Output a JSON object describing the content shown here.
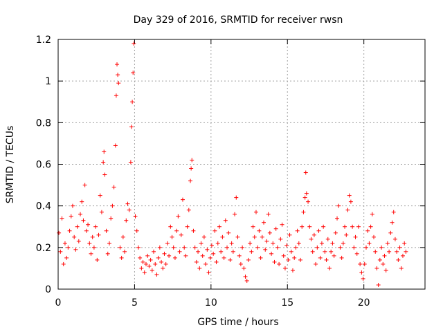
{
  "chart_data": {
    "type": "scatter",
    "title": "Day 329 of 2016, SRMTID for receiver rwsn",
    "xlabel": "GPS time / hours",
    "ylabel": "SRMTID / TECUs",
    "xlim": [
      0,
      24
    ],
    "ylim": [
      0,
      1.2
    ],
    "grid": true,
    "x_ticks": [
      0,
      5,
      10,
      15,
      20
    ],
    "x_tick_labels": [
      "0",
      "5",
      "10",
      "15",
      "20"
    ],
    "y_ticks": [
      0,
      0.2,
      0.4,
      0.6,
      0.8,
      1.0,
      1.2
    ],
    "y_tick_labels": [
      "0",
      "0.2",
      "0.4",
      "0.6",
      "0.8",
      "1",
      "1.2"
    ],
    "marker": "+",
    "color": "#ff0000",
    "series": [
      {
        "name": "SRMTID",
        "points": [
          [
            0.05,
            0.27
          ],
          [
            0.15,
            0.18
          ],
          [
            0.25,
            0.34
          ],
          [
            0.35,
            0.12
          ],
          [
            0.45,
            0.22
          ],
          [
            0.55,
            0.15
          ],
          [
            0.65,
            0.2
          ],
          [
            0.75,
            0.28
          ],
          [
            0.85,
            0.35
          ],
          [
            0.95,
            0.4
          ],
          [
            1.05,
            0.25
          ],
          [
            1.15,
            0.19
          ],
          [
            1.25,
            0.3
          ],
          [
            1.35,
            0.23
          ],
          [
            1.45,
            0.36
          ],
          [
            1.55,
            0.42
          ],
          [
            1.65,
            0.33
          ],
          [
            1.75,
            0.5
          ],
          [
            1.85,
            0.28
          ],
          [
            1.95,
            0.31
          ],
          [
            2.05,
            0.22
          ],
          [
            2.15,
            0.17
          ],
          [
            2.25,
            0.25
          ],
          [
            2.35,
            0.2
          ],
          [
            2.45,
            0.3
          ],
          [
            2.55,
            0.14
          ],
          [
            2.65,
            0.26
          ],
          [
            2.75,
            0.45
          ],
          [
            2.85,
            0.37
          ],
          [
            2.95,
            0.61
          ],
          [
            3.0,
            0.66
          ],
          [
            3.05,
            0.55
          ],
          [
            3.15,
            0.28
          ],
          [
            3.25,
            0.17
          ],
          [
            3.35,
            0.22
          ],
          [
            3.45,
            0.34
          ],
          [
            3.55,
            0.4
          ],
          [
            3.65,
            0.49
          ],
          [
            3.75,
            0.69
          ],
          [
            3.8,
            0.93
          ],
          [
            3.85,
            1.08
          ],
          [
            3.9,
            1.03
          ],
          [
            3.95,
            0.99
          ],
          [
            4.05,
            0.2
          ],
          [
            4.15,
            0.15
          ],
          [
            4.25,
            0.25
          ],
          [
            4.35,
            0.18
          ],
          [
            4.45,
            0.33
          ],
          [
            4.55,
            0.41
          ],
          [
            4.65,
            0.38
          ],
          [
            4.75,
            0.61
          ],
          [
            4.8,
            0.78
          ],
          [
            4.85,
            0.9
          ],
          [
            4.9,
            1.04
          ],
          [
            4.95,
            1.18
          ],
          [
            5.05,
            0.35
          ],
          [
            5.15,
            0.28
          ],
          [
            5.25,
            0.2
          ],
          [
            5.35,
            0.15
          ],
          [
            5.45,
            0.1
          ],
          [
            5.55,
            0.13
          ],
          [
            5.65,
            0.08
          ],
          [
            5.75,
            0.12
          ],
          [
            5.85,
            0.16
          ],
          [
            5.95,
            0.11
          ],
          [
            6.05,
            0.14
          ],
          [
            6.15,
            0.09
          ],
          [
            6.25,
            0.18
          ],
          [
            6.35,
            0.12
          ],
          [
            6.45,
            0.07
          ],
          [
            6.55,
            0.15
          ],
          [
            6.65,
            0.2
          ],
          [
            6.75,
            0.13
          ],
          [
            6.85,
            0.1
          ],
          [
            6.95,
            0.17
          ],
          [
            7.05,
            0.12
          ],
          [
            7.15,
            0.22
          ],
          [
            7.25,
            0.16
          ],
          [
            7.35,
            0.3
          ],
          [
            7.45,
            0.25
          ],
          [
            7.55,
            0.2
          ],
          [
            7.65,
            0.15
          ],
          [
            7.75,
            0.28
          ],
          [
            7.85,
            0.35
          ],
          [
            7.95,
            0.18
          ],
          [
            8.05,
            0.26
          ],
          [
            8.15,
            0.43
          ],
          [
            8.25,
            0.2
          ],
          [
            8.35,
            0.16
          ],
          [
            8.45,
            0.3
          ],
          [
            8.55,
            0.38
          ],
          [
            8.65,
            0.52
          ],
          [
            8.7,
            0.58
          ],
          [
            8.75,
            0.62
          ],
          [
            8.85,
            0.28
          ],
          [
            8.95,
            0.2
          ],
          [
            9.05,
            0.13
          ],
          [
            9.15,
            0.18
          ],
          [
            9.25,
            0.1
          ],
          [
            9.35,
            0.22
          ],
          [
            9.45,
            0.16
          ],
          [
            9.55,
            0.25
          ],
          [
            9.65,
            0.12
          ],
          [
            9.75,
            0.19
          ],
          [
            9.85,
            0.08
          ],
          [
            9.95,
            0.15
          ],
          [
            10.05,
            0.21
          ],
          [
            10.15,
            0.17
          ],
          [
            10.25,
            0.28
          ],
          [
            10.35,
            0.13
          ],
          [
            10.45,
            0.22
          ],
          [
            10.55,
            0.3
          ],
          [
            10.65,
            0.18
          ],
          [
            10.75,
            0.25
          ],
          [
            10.85,
            0.15
          ],
          [
            10.95,
            0.33
          ],
          [
            11.05,
            0.2
          ],
          [
            11.15,
            0.27
          ],
          [
            11.25,
            0.14
          ],
          [
            11.35,
            0.22
          ],
          [
            11.45,
            0.18
          ],
          [
            11.55,
            0.36
          ],
          [
            11.65,
            0.44
          ],
          [
            11.75,
            0.25
          ],
          [
            11.85,
            0.16
          ],
          [
            11.95,
            0.12
          ],
          [
            12.05,
            0.2
          ],
          [
            12.15,
            0.1
          ],
          [
            12.25,
            0.06
          ],
          [
            12.35,
            0.04
          ],
          [
            12.45,
            0.14
          ],
          [
            12.55,
            0.22
          ],
          [
            12.65,
            0.18
          ],
          [
            12.75,
            0.3
          ],
          [
            12.85,
            0.25
          ],
          [
            12.95,
            0.37
          ],
          [
            13.05,
            0.2
          ],
          [
            13.15,
            0.28
          ],
          [
            13.25,
            0.15
          ],
          [
            13.35,
            0.25
          ],
          [
            13.45,
            0.32
          ],
          [
            13.55,
            0.19
          ],
          [
            13.65,
            0.23
          ],
          [
            13.75,
            0.36
          ],
          [
            13.85,
            0.27
          ],
          [
            13.95,
            0.17
          ],
          [
            14.05,
            0.22
          ],
          [
            14.15,
            0.13
          ],
          [
            14.25,
            0.29
          ],
          [
            14.35,
            0.2
          ],
          [
            14.45,
            0.12
          ],
          [
            14.55,
            0.24
          ],
          [
            14.65,
            0.31
          ],
          [
            14.75,
            0.16
          ],
          [
            14.85,
            0.1
          ],
          [
            14.95,
            0.21
          ],
          [
            15.05,
            0.14
          ],
          [
            15.15,
            0.26
          ],
          [
            15.25,
            0.18
          ],
          [
            15.35,
            0.09
          ],
          [
            15.45,
            0.15
          ],
          [
            15.55,
            0.2
          ],
          [
            15.65,
            0.28
          ],
          [
            15.75,
            0.22
          ],
          [
            15.85,
            0.14
          ],
          [
            15.95,
            0.3
          ],
          [
            16.05,
            0.37
          ],
          [
            16.15,
            0.44
          ],
          [
            16.2,
            0.56
          ],
          [
            16.25,
            0.46
          ],
          [
            16.35,
            0.42
          ],
          [
            16.45,
            0.3
          ],
          [
            16.55,
            0.24
          ],
          [
            16.65,
            0.18
          ],
          [
            16.75,
            0.26
          ],
          [
            16.85,
            0.12
          ],
          [
            16.95,
            0.2
          ],
          [
            17.05,
            0.28
          ],
          [
            17.15,
            0.15
          ],
          [
            17.25,
            0.22
          ],
          [
            17.35,
            0.3
          ],
          [
            17.45,
            0.18
          ],
          [
            17.55,
            0.14
          ],
          [
            17.65,
            0.24
          ],
          [
            17.75,
            0.1
          ],
          [
            17.85,
            0.18
          ],
          [
            17.95,
            0.22
          ],
          [
            18.05,
            0.16
          ],
          [
            18.15,
            0.27
          ],
          [
            18.25,
            0.34
          ],
          [
            18.35,
            0.4
          ],
          [
            18.45,
            0.2
          ],
          [
            18.55,
            0.15
          ],
          [
            18.65,
            0.22
          ],
          [
            18.75,
            0.3
          ],
          [
            18.85,
            0.26
          ],
          [
            18.95,
            0.38
          ],
          [
            19.05,
            0.45
          ],
          [
            19.15,
            0.42
          ],
          [
            19.25,
            0.3
          ],
          [
            19.35,
            0.2
          ],
          [
            19.45,
            0.25
          ],
          [
            19.55,
            0.17
          ],
          [
            19.65,
            0.3
          ],
          [
            19.75,
            0.12
          ],
          [
            19.85,
            0.08
          ],
          [
            19.95,
            0.05
          ],
          [
            20.05,
            0.12
          ],
          [
            20.15,
            0.2
          ],
          [
            20.25,
            0.28
          ],
          [
            20.35,
            0.22
          ],
          [
            20.45,
            0.3
          ],
          [
            20.55,
            0.36
          ],
          [
            20.65,
            0.25
          ],
          [
            20.75,
            0.18
          ],
          [
            20.85,
            0.1
          ],
          [
            20.95,
            0.02
          ],
          [
            21.05,
            0.14
          ],
          [
            21.15,
            0.2
          ],
          [
            21.25,
            0.12
          ],
          [
            21.35,
            0.16
          ],
          [
            21.45,
            0.09
          ],
          [
            21.55,
            0.22
          ],
          [
            21.65,
            0.18
          ],
          [
            21.75,
            0.27
          ],
          [
            21.85,
            0.32
          ],
          [
            21.95,
            0.37
          ],
          [
            22.05,
            0.24
          ],
          [
            22.15,
            0.18
          ],
          [
            22.25,
            0.14
          ],
          [
            22.35,
            0.2
          ],
          [
            22.45,
            0.1
          ],
          [
            22.55,
            0.16
          ],
          [
            22.65,
            0.22
          ],
          [
            22.75,
            0.18
          ]
        ]
      }
    ]
  }
}
